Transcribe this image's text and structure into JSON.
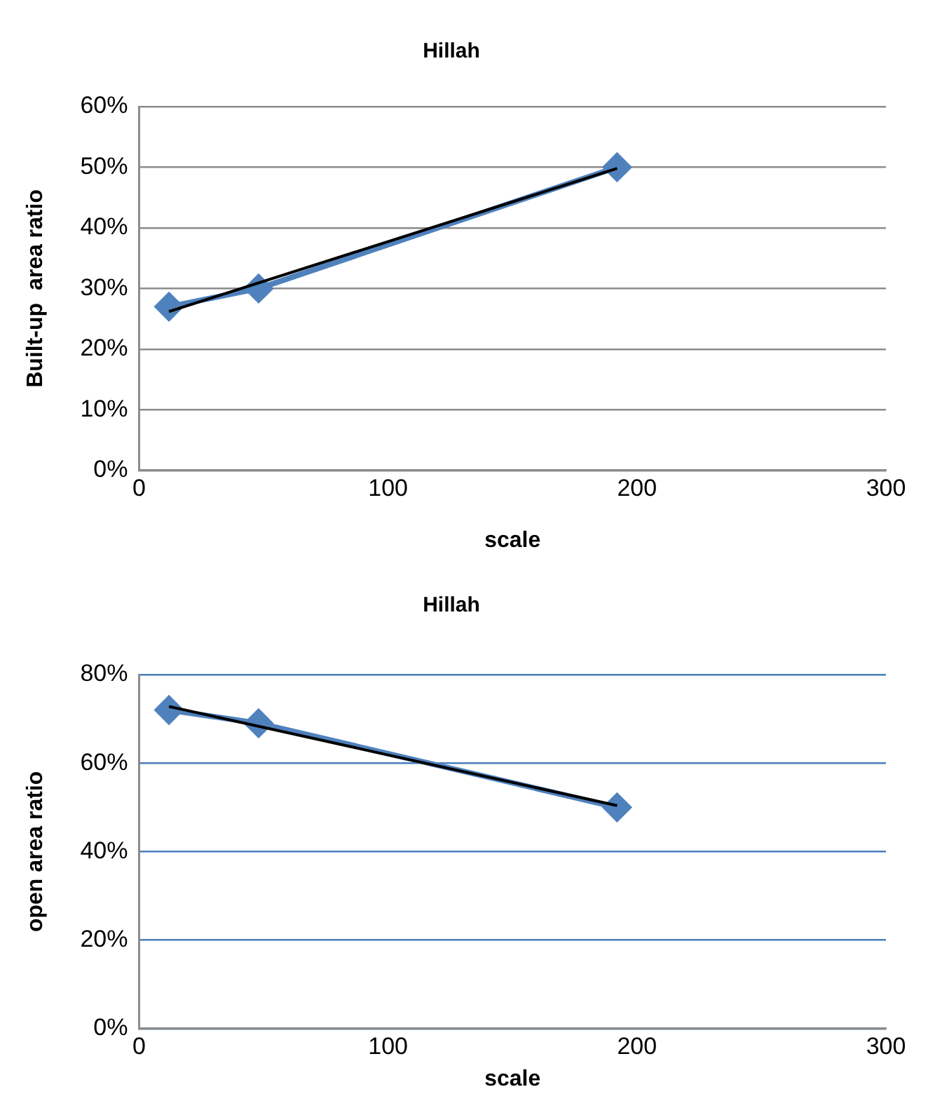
{
  "chart_data": [
    {
      "type": "line",
      "title": "Hillah",
      "xlabel": "scale",
      "ylabel": "Built-up  area ratio",
      "xlim": [
        0,
        300
      ],
      "xticks": [
        0,
        100,
        200,
        300
      ],
      "ylim": [
        0,
        60
      ],
      "yticks": [
        {
          "value": 0,
          "label": "0%"
        },
        {
          "value": 10,
          "label": "10%"
        },
        {
          "value": 20,
          "label": "20%"
        },
        {
          "value": 30,
          "label": "30%"
        },
        {
          "value": 40,
          "label": "40%"
        },
        {
          "value": 50,
          "label": "50%"
        },
        {
          "value": 60,
          "label": "60%"
        }
      ],
      "grid": "y",
      "marker": "diamond",
      "legend": false,
      "series": [
        {
          "color": "#4f81bd",
          "x": [
            12,
            48,
            192
          ],
          "values": [
            27,
            30,
            50
          ]
        },
        {
          "type": "line",
          "color": "#000000",
          "marker": "none",
          "x": [
            12,
            192
          ],
          "values": [
            26.2,
            49.8
          ]
        }
      ]
    },
    {
      "type": "line",
      "title": "Hillah",
      "xlabel": "scale",
      "ylabel": "open area ratio",
      "xlim": [
        0,
        300
      ],
      "xticks": [
        0,
        100,
        200,
        300
      ],
      "ylim": [
        0,
        80
      ],
      "yticks": [
        {
          "value": 0,
          "label": "0%"
        },
        {
          "value": 20,
          "label": "20%"
        },
        {
          "value": 40,
          "label": "40%"
        },
        {
          "value": 60,
          "label": "60%"
        },
        {
          "value": 80,
          "label": "80%"
        }
      ],
      "grid": "y",
      "marker": "diamond",
      "legend": false,
      "series": [
        {
          "color": "#4f81bd",
          "x": [
            12,
            48,
            192
          ],
          "values": [
            72,
            69,
            50
          ]
        },
        {
          "type": "line",
          "color": "#000000",
          "marker": "none",
          "x": [
            12,
            192
          ],
          "values": [
            72.8,
            50.4
          ]
        }
      ]
    }
  ]
}
